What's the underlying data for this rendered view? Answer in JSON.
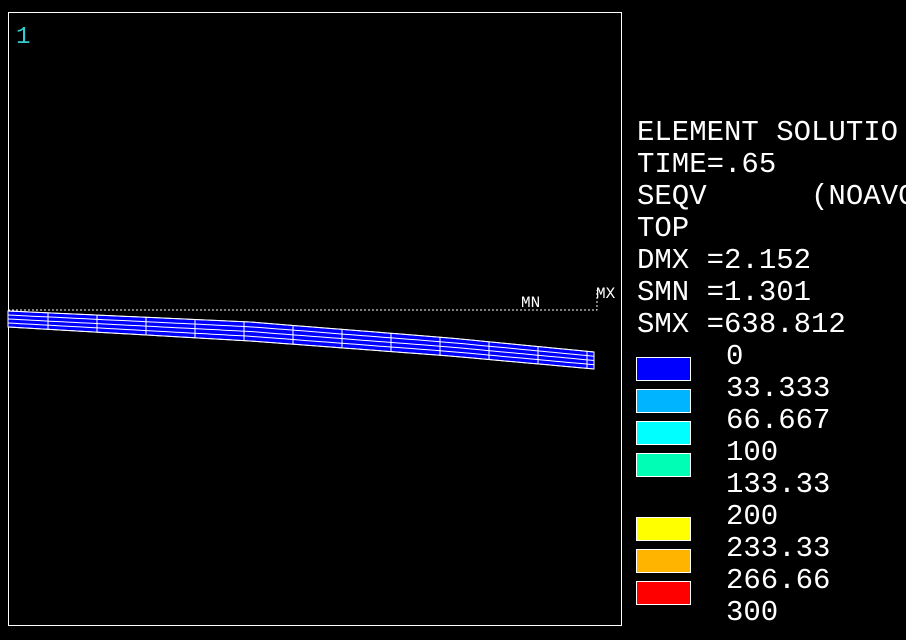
{
  "window_number": "1",
  "markers": {
    "min": "MN",
    "max": "MX"
  },
  "legend": {
    "header": [
      "ELEMENT SOLUTIO",
      "TIME=.65",
      "SEQV      (NOAVG",
      "TOP",
      "DMX =2.152",
      "SMN =1.301",
      "SMX =638.812"
    ],
    "labels": [
      "0",
      "33.333",
      "66.667",
      "100",
      "133.33",
      "200",
      "233.33",
      "266.66",
      "300"
    ],
    "colors": [
      "#0000ff",
      "#00b4ff",
      "#00ffff",
      "#00ffb4",
      null,
      "#ffff00",
      "#ffb400",
      "#ff0000"
    ]
  }
}
